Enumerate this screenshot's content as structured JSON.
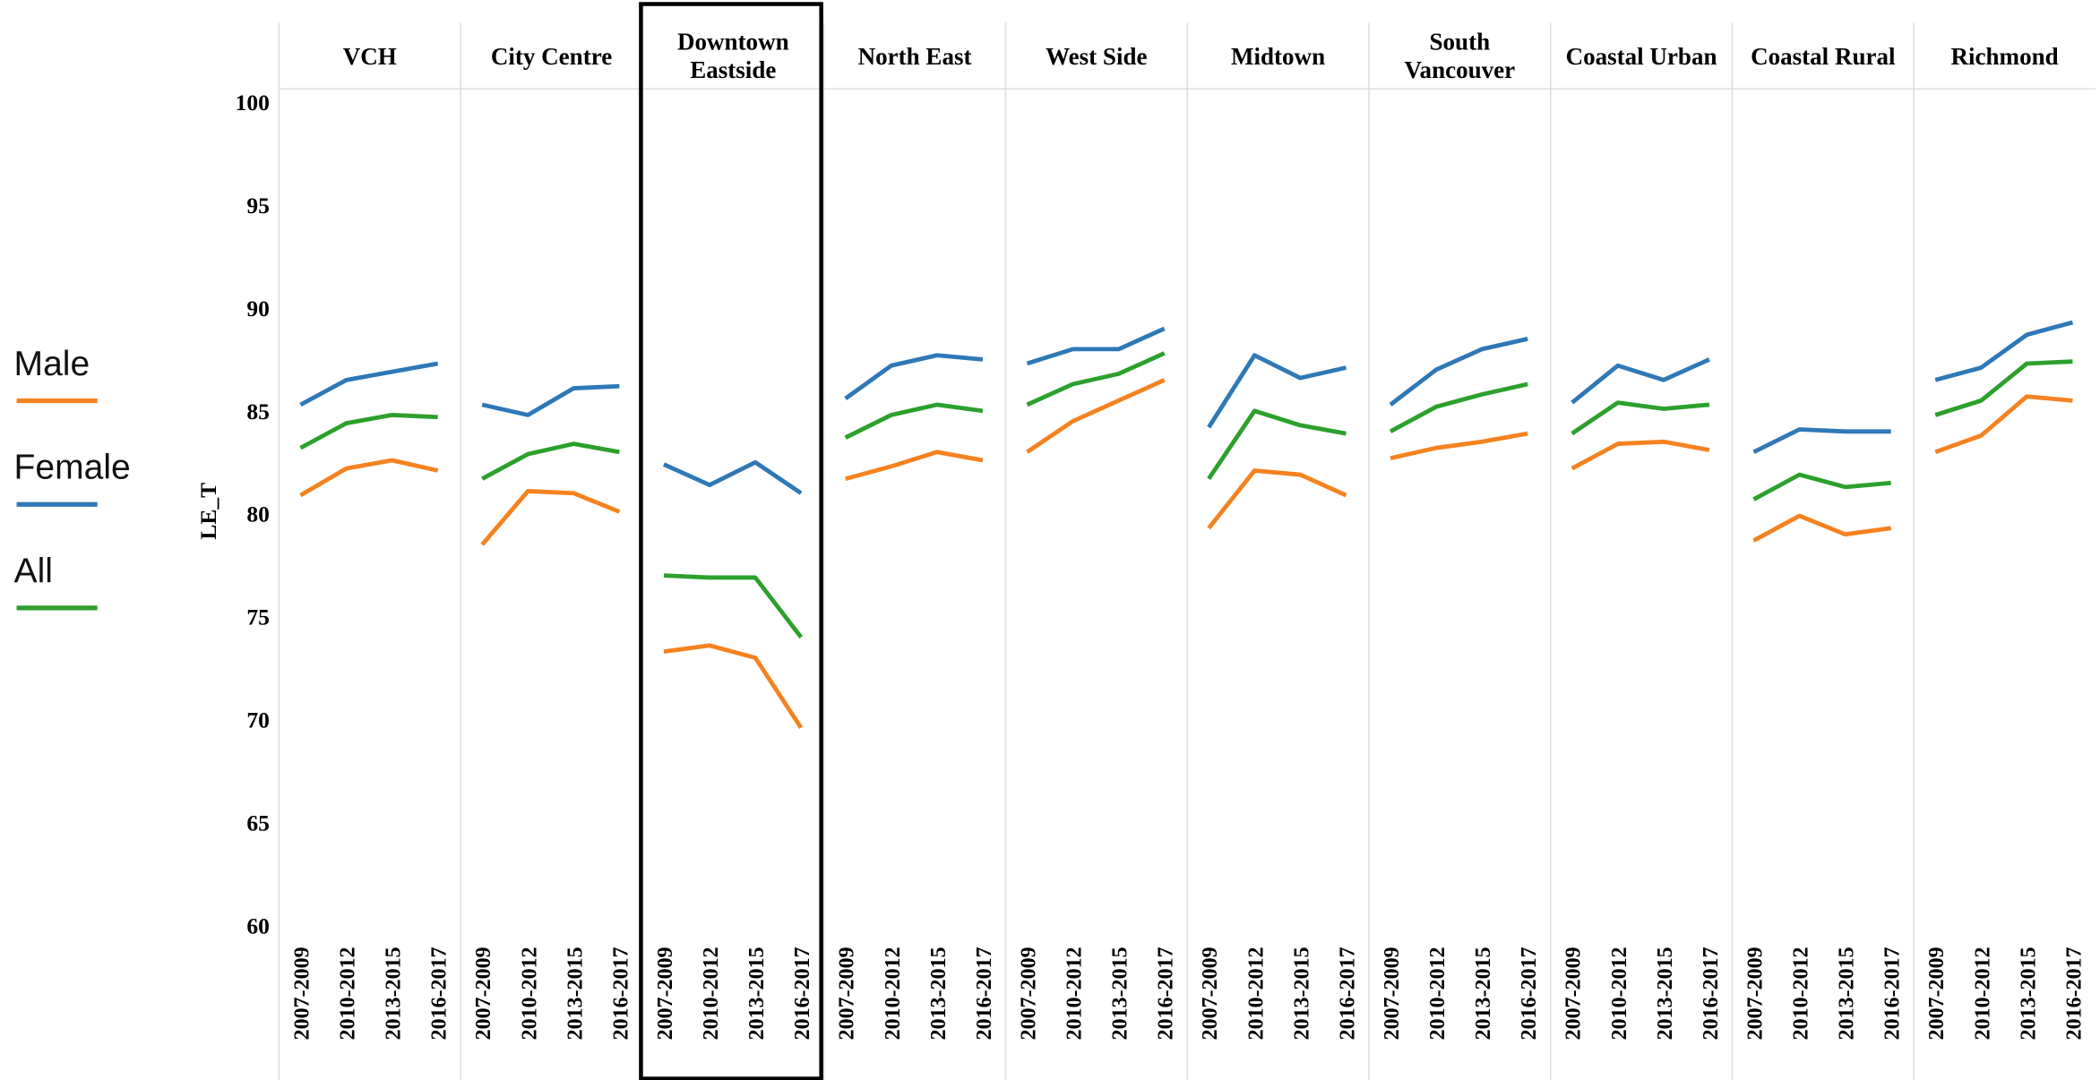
{
  "chart_data": {
    "type": "line",
    "ylabel": "LE_T",
    "ylim": [
      60,
      100
    ],
    "yticks": [
      60,
      65,
      70,
      75,
      80,
      85,
      90,
      95,
      100
    ],
    "categories": [
      "2007-2009",
      "2010-2012",
      "2013-2015",
      "2016-2017"
    ],
    "series": [
      {
        "name": "Male",
        "color": "#f5821f"
      },
      {
        "name": "Female",
        "color": "#2e78b7"
      },
      {
        "name": "All",
        "color": "#2ca02c"
      }
    ],
    "highlight": "Downtown Eastside",
    "panels": [
      {
        "title": "VCH",
        "series_values": [
          [
            80.9,
            82.2,
            82.6,
            82.1
          ],
          [
            85.3,
            86.5,
            86.9,
            87.3
          ],
          [
            83.2,
            84.4,
            84.8,
            84.7
          ]
        ]
      },
      {
        "title": "City Centre",
        "series_values": [
          [
            78.5,
            81.1,
            81.0,
            80.1
          ],
          [
            85.3,
            84.8,
            86.1,
            86.2
          ],
          [
            81.7,
            82.9,
            83.4,
            83.0
          ]
        ]
      },
      {
        "title": "Downtown Eastside",
        "series_values": [
          [
            73.3,
            73.6,
            73.0,
            69.6
          ],
          [
            82.4,
            81.4,
            82.5,
            81.0
          ],
          [
            77.0,
            76.9,
            76.9,
            74.0
          ]
        ]
      },
      {
        "title": "North East",
        "series_values": [
          [
            81.7,
            82.3,
            83.0,
            82.6
          ],
          [
            85.6,
            87.2,
            87.7,
            87.5
          ],
          [
            83.7,
            84.8,
            85.3,
            85.0
          ]
        ]
      },
      {
        "title": "West Side",
        "series_values": [
          [
            83.0,
            84.5,
            85.5,
            86.5
          ],
          [
            87.3,
            88.0,
            88.0,
            89.0
          ],
          [
            85.3,
            86.3,
            86.8,
            87.8
          ]
        ]
      },
      {
        "title": "Midtown",
        "series_values": [
          [
            79.3,
            82.1,
            81.9,
            80.9
          ],
          [
            84.2,
            87.7,
            86.6,
            87.1
          ],
          [
            81.7,
            85.0,
            84.3,
            83.9
          ]
        ]
      },
      {
        "title": "South Vancouver",
        "series_values": [
          [
            82.7,
            83.2,
            83.5,
            83.9
          ],
          [
            85.3,
            87.0,
            88.0,
            88.5
          ],
          [
            84.0,
            85.2,
            85.8,
            86.3
          ]
        ]
      },
      {
        "title": "Coastal Urban",
        "series_values": [
          [
            82.2,
            83.4,
            83.5,
            83.1
          ],
          [
            85.4,
            87.2,
            86.5,
            87.5
          ],
          [
            83.9,
            85.4,
            85.1,
            85.3
          ]
        ]
      },
      {
        "title": "Coastal Rural",
        "series_values": [
          [
            78.7,
            79.9,
            79.0,
            79.3
          ],
          [
            83.0,
            84.1,
            84.0,
            84.0
          ],
          [
            80.7,
            81.9,
            81.3,
            81.5
          ]
        ]
      },
      {
        "title": "Richmond",
        "series_values": [
          [
            83.0,
            83.8,
            85.7,
            85.5
          ],
          [
            86.5,
            87.1,
            88.7,
            89.3
          ],
          [
            84.8,
            85.5,
            87.3,
            87.4
          ]
        ]
      }
    ]
  }
}
